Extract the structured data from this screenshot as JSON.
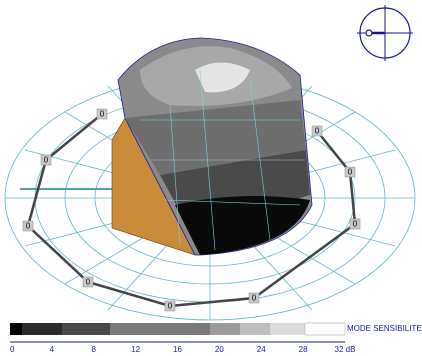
{
  "scene": {
    "points": [
      {
        "label": "0"
      },
      {
        "label": "0"
      },
      {
        "label": "0"
      },
      {
        "label": "0"
      },
      {
        "label": "0"
      },
      {
        "label": "0"
      },
      {
        "label": "0"
      },
      {
        "label": "0"
      },
      {
        "label": "0"
      }
    ]
  },
  "legend": {
    "title": "MODE SENSIBILITE",
    "ticks": [
      "0",
      "4",
      "8",
      "12",
      "16",
      "20",
      "24",
      "28",
      "32 dB"
    ]
  }
}
